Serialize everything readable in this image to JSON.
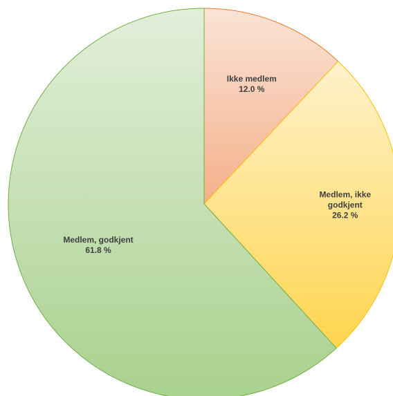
{
  "chart_data": {
    "type": "pie",
    "title": "",
    "start_angle_deg": 0,
    "direction": "clockwise",
    "legend": "none",
    "slices": [
      {
        "label_lines": [
          "Ikke medlem"
        ],
        "value": 12.0,
        "value_label": "12.0 %",
        "gradient": [
          "#fbe3d6",
          "#f4b08a"
        ],
        "edge": "#ed7d31"
      },
      {
        "label_lines": [
          "Medlem, ikke",
          "godkjent"
        ],
        "value": 26.2,
        "value_label": "26.2 %",
        "gradient": [
          "#fff2cc",
          "#ffd54f"
        ],
        "edge": "#ffc000"
      },
      {
        "label_lines": [
          "Medlem, godkjent"
        ],
        "value": 61.8,
        "value_label": "61.8 %",
        "gradient": [
          "#e2efda",
          "#a9d18e"
        ],
        "edge": "#70ad47"
      }
    ]
  }
}
